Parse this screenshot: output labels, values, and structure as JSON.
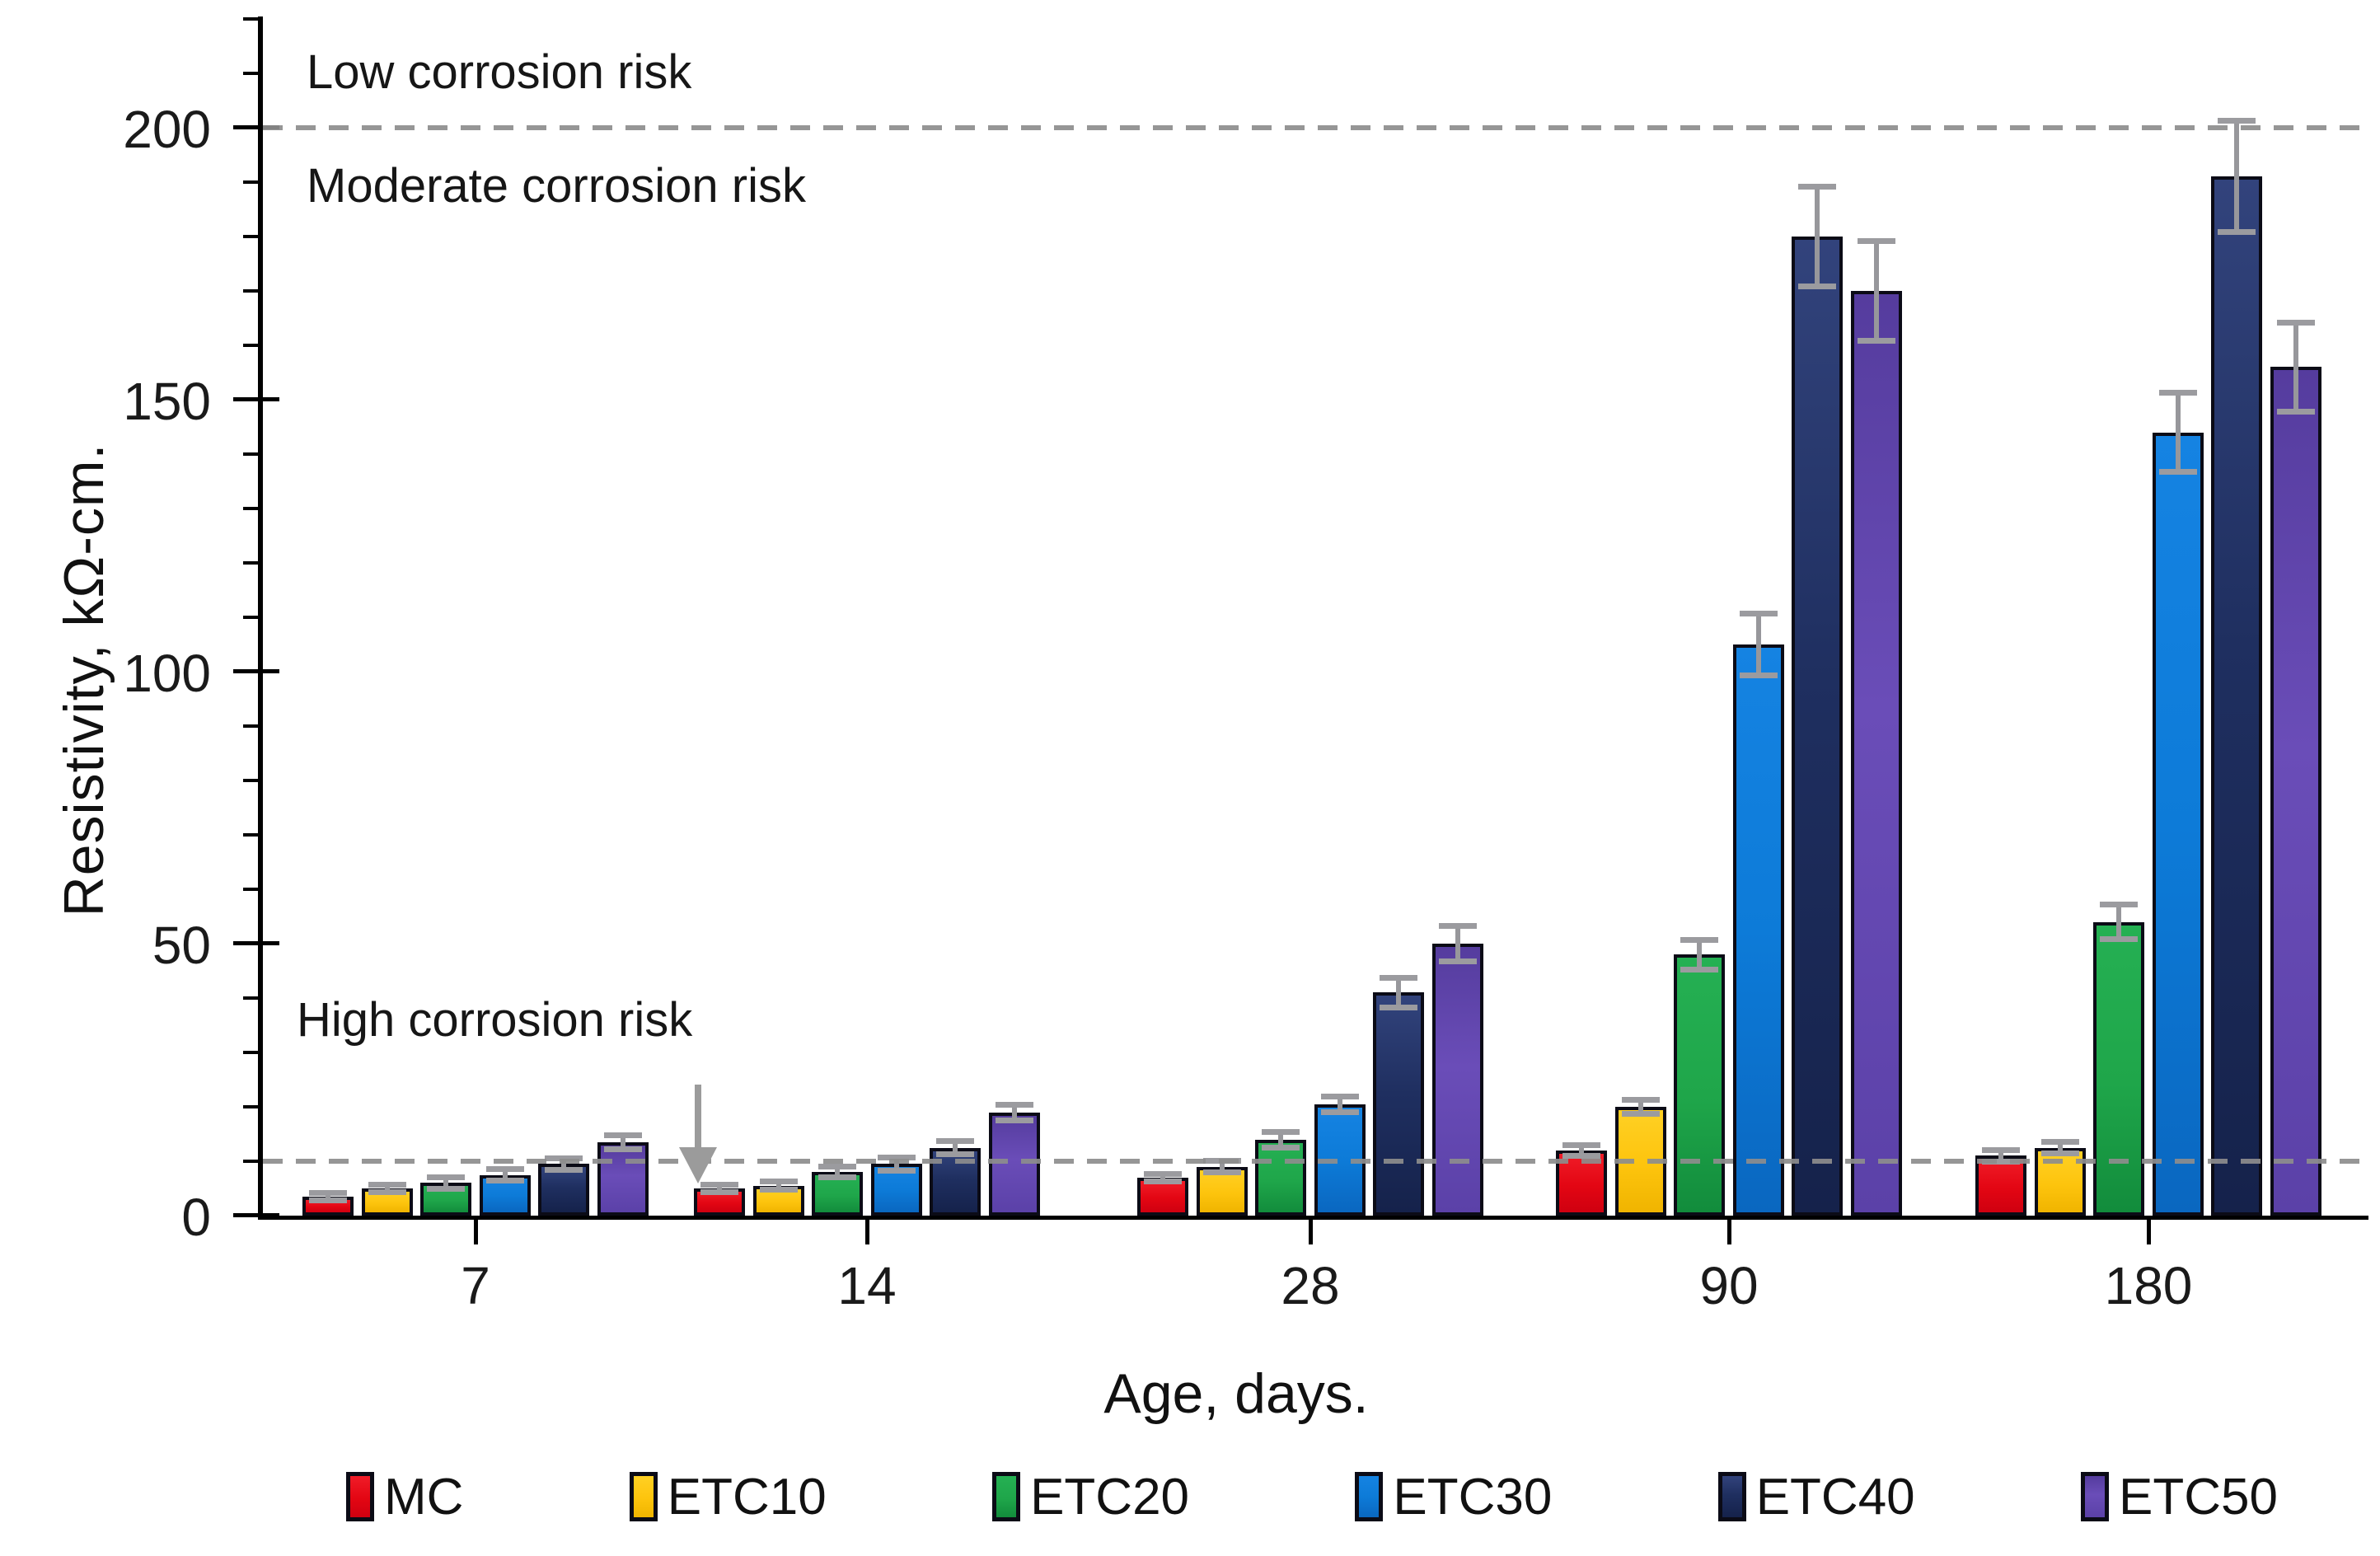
{
  "y_axis": {
    "title": "Resistivity,  kΩ-cm.",
    "tick_values": [
      0,
      50,
      100,
      150,
      200
    ],
    "minor_tick_step": 10,
    "axis_max": 220
  },
  "x_axis": {
    "title": "Age, days.",
    "categories": [
      "7",
      "14",
      "28",
      "90",
      "180"
    ]
  },
  "annotations": {
    "low": "Low corrosion risk",
    "moderate": "Moderate corrosion risk",
    "high": "High corrosion risk"
  },
  "legend": [
    "MC",
    "ETC10",
    "ETC20",
    "ETC30",
    "ETC40",
    "ETC50"
  ],
  "colors": {
    "MC": "#E30613",
    "ETC10": "#FDC40D",
    "ETC20": "#1FA64A",
    "ETC30": "#0D7BD8",
    "ETC40": "#1F2F60",
    "ETC50": "#5B41A8",
    "error_bar": "#9B9B9B",
    "reference_line": "#8D8D8D"
  },
  "chart_data": {
    "type": "bar",
    "title": "",
    "xlabel": "Age, days.",
    "ylabel": "Resistivity,  kΩ-cm.",
    "categories": [
      "7",
      "14",
      "28",
      "90",
      "180"
    ],
    "ylim": [
      0,
      220
    ],
    "y_major_ticks": [
      0,
      50,
      100,
      150,
      200
    ],
    "y_minor_step": 10,
    "grid": false,
    "legend_position": "bottom",
    "series": [
      {
        "name": "MC",
        "color": "#E30613",
        "values": [
          3.5,
          5,
          7,
          12,
          11
        ],
        "errors": [
          0.5,
          0.5,
          0.5,
          0.8,
          0.8
        ]
      },
      {
        "name": "ETC10",
        "color": "#FDC40D",
        "values": [
          5,
          5.5,
          9,
          20,
          12.5
        ],
        "errors": [
          0.5,
          0.5,
          0.8,
          1,
          0.8
        ]
      },
      {
        "name": "ETC20",
        "color": "#1FA64A",
        "values": [
          6,
          8,
          14,
          48,
          54
        ],
        "errors": [
          0.8,
          0.8,
          1.2,
          2.5,
          3
        ]
      },
      {
        "name": "ETC30",
        "color": "#0D7BD8",
        "values": [
          7.5,
          9.5,
          20.5,
          105,
          144
        ],
        "errors": [
          0.8,
          1,
          1.2,
          5.5,
          7
        ]
      },
      {
        "name": "ETC40",
        "color": "#1F2F60",
        "values": [
          9.5,
          12.5,
          41,
          180,
          191
        ],
        "errors": [
          0.8,
          1,
          2.5,
          9,
          10
        ]
      },
      {
        "name": "ETC50",
        "color": "#5B41A8",
        "values": [
          13.5,
          19,
          50,
          170,
          156
        ],
        "errors": [
          1,
          1.2,
          3,
          9,
          8
        ]
      }
    ],
    "reference_lines": [
      {
        "label": "Low corrosion risk",
        "value": 200
      },
      {
        "label": "High corrosion risk",
        "value": 10
      }
    ]
  }
}
